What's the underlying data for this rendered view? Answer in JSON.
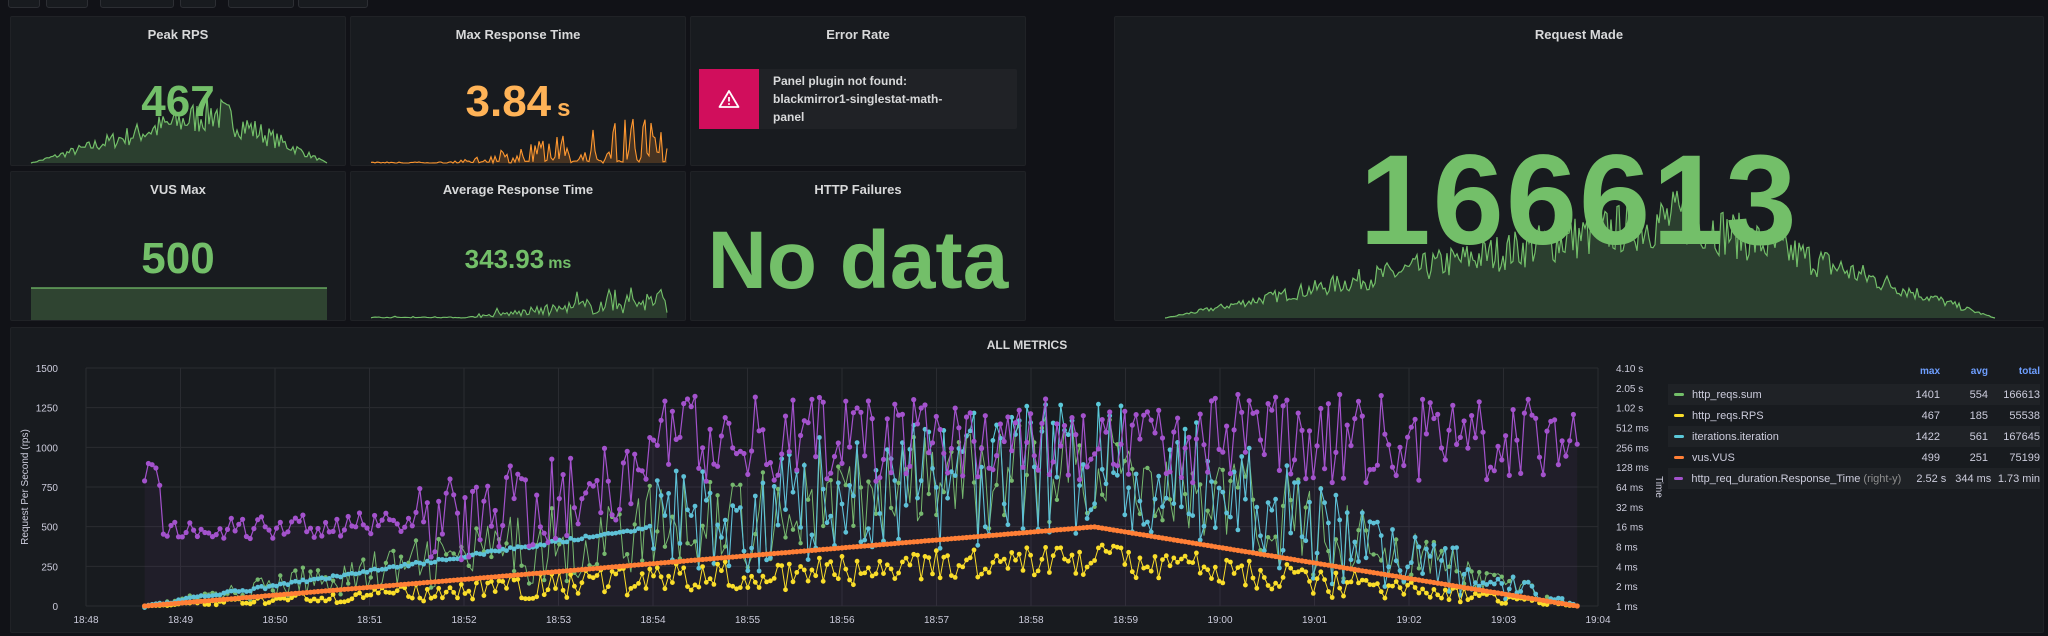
{
  "panels": {
    "peak_rps": {
      "title": "Peak RPS",
      "value": "467"
    },
    "max_response_time": {
      "title": "Max Response Time",
      "value": "3.84",
      "unit": "s"
    },
    "error_rate": {
      "title": "Error Rate",
      "error": "Panel plugin not found: blackmirror1-singlestat-math-panel"
    },
    "vus_max": {
      "title": "VUS Max",
      "value": "500"
    },
    "avg_response_time": {
      "title": "Average Response Time",
      "value": "343.93",
      "unit": "ms"
    },
    "http_failures": {
      "title": "HTTP Failures",
      "value": "No data"
    },
    "request_made": {
      "title": "Request Made",
      "value": "166613"
    }
  },
  "all_metrics": {
    "title": "ALL METRICS",
    "ylabel_left": "Request Per Second (rps)",
    "ylabel_right": "Time",
    "left_ticks": [
      "0",
      "250",
      "500",
      "750",
      "1000",
      "1250",
      "1500"
    ],
    "right_ticks": [
      "1 ms",
      "2 ms",
      "4 ms",
      "8 ms",
      "16 ms",
      "32 ms",
      "64 ms",
      "128 ms",
      "256 ms",
      "512 ms",
      "1.02 s",
      "2.05 s",
      "4.10 s"
    ],
    "x_ticks": [
      "18:48",
      "18:49",
      "18:50",
      "18:51",
      "18:52",
      "18:53",
      "18:54",
      "18:55",
      "18:56",
      "18:57",
      "18:58",
      "18:59",
      "19:00",
      "19:01",
      "19:02",
      "19:03",
      "19:04"
    ]
  },
  "legend": {
    "headers": {
      "max": "max",
      "avg": "avg",
      "total": "total"
    },
    "rows": [
      {
        "name": "http_reqs.sum",
        "suffix": "",
        "color": "#73bf69",
        "max": "1401",
        "avg": "554",
        "total": "166613"
      },
      {
        "name": "http_reqs.RPS",
        "suffix": "",
        "color": "#fade2a",
        "max": "467",
        "avg": "185",
        "total": "55538"
      },
      {
        "name": "iterations.iteration",
        "suffix": "",
        "color": "#5ac8d8",
        "max": "1422",
        "avg": "561",
        "total": "167645"
      },
      {
        "name": "vus.VUS",
        "suffix": "",
        "color": "#ff7f36",
        "max": "499",
        "avg": "251",
        "total": "75199"
      },
      {
        "name": "http_req_duration.Response_Time",
        "suffix": "(right-y)",
        "color": "#a352cc",
        "max": "2.52 s",
        "avg": "344 ms",
        "total": "1.73 min"
      }
    ]
  },
  "chart_data": {
    "type": "line",
    "title": "ALL METRICS",
    "xlabel": "",
    "ylabel": "Request Per Second (rps)",
    "ylabel_right": "Time",
    "ylim": [
      0,
      1500
    ],
    "x": [
      "18:48:37",
      "18:49:30",
      "18:50:30",
      "18:51:30",
      "18:52:30",
      "18:53:30",
      "18:54:30",
      "18:55:30",
      "18:56:30",
      "18:57:30",
      "18:58:30",
      "18:58:40",
      "18:59:30",
      "19:00:30",
      "19:01:30",
      "19:02:30",
      "19:03:30",
      "19:03:47"
    ],
    "series": [
      {
        "name": "http_reqs.sum",
        "values": [
          0,
          100,
          190,
          290,
          380,
          470,
          560,
          650,
          760,
          860,
          990,
          1150,
          780,
          640,
          520,
          350,
          200,
          50
        ]
      },
      {
        "name": "http_reqs.RPS",
        "values": [
          0,
          40,
          60,
          100,
          130,
          160,
          190,
          220,
          250,
          290,
          330,
          300,
          250,
          210,
          160,
          110,
          60,
          10
        ]
      },
      {
        "name": "iterations.iteration",
        "values": [
          0,
          100,
          195,
          295,
          385,
          475,
          570,
          660,
          770,
          870,
          1000,
          1160,
          790,
          650,
          530,
          360,
          210,
          55
        ]
      },
      {
        "name": "vus.VUS",
        "values": [
          0,
          60,
          110,
          160,
          210,
          250,
          300,
          350,
          400,
          450,
          480,
          499,
          400,
          310,
          220,
          130,
          50,
          0
        ]
      },
      {
        "name": "http_req_duration.Response_Time",
        "axis": "right",
        "values_ms": [
          100,
          25,
          14,
          12,
          18,
          22,
          60,
          180,
          240,
          300,
          380,
          350,
          400,
          500,
          450,
          420,
          500,
          600
        ]
      }
    ]
  }
}
